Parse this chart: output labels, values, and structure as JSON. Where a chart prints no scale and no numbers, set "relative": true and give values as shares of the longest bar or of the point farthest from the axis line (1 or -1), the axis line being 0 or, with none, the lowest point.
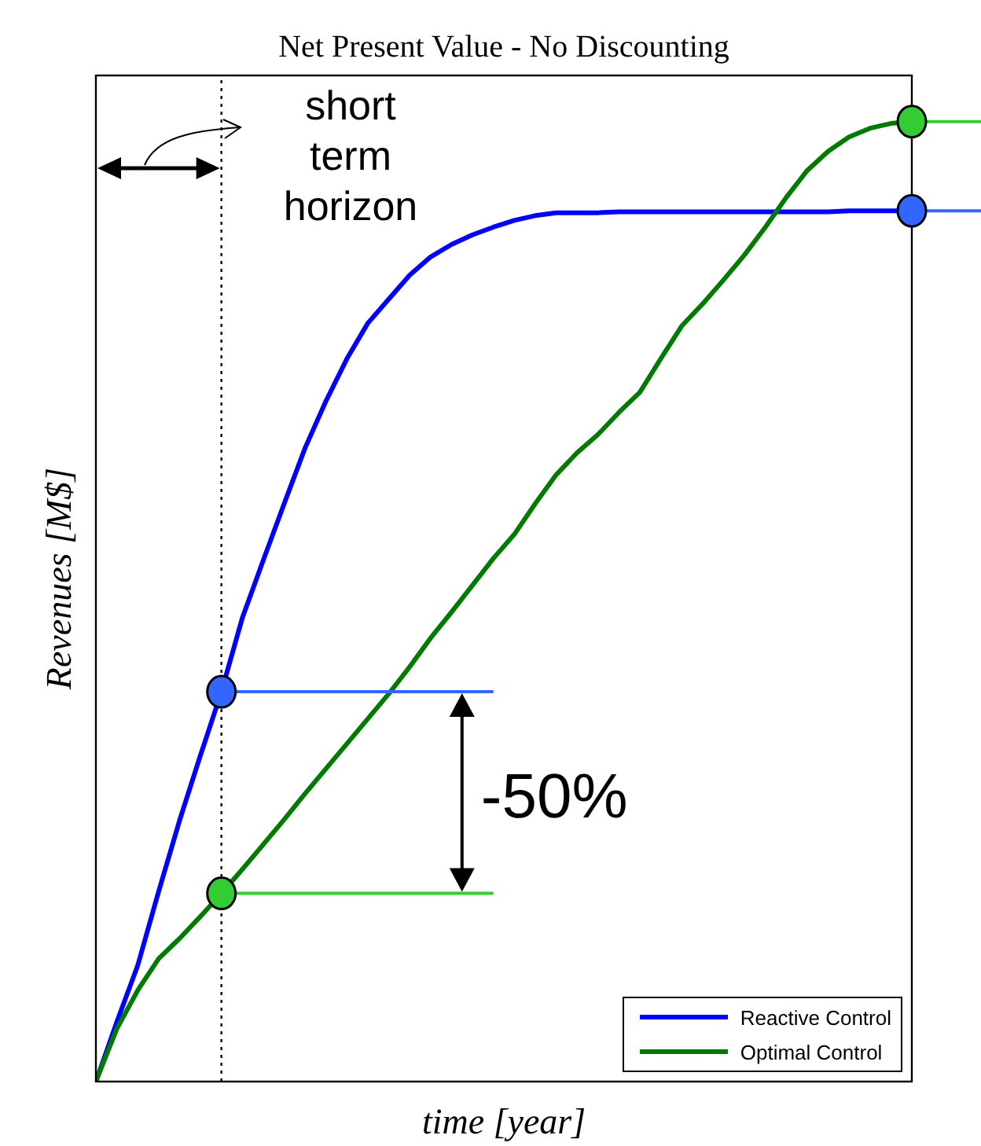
{
  "chart_data": {
    "type": "line",
    "title": "Net Present Value - No Discounting",
    "xlabel": "time [year]",
    "ylabel": "Revenues [M$]",
    "relative": true,
    "categories": [
      null,
      null,
      null,
      null,
      null,
      null,
      null,
      null,
      null,
      null,
      null,
      null,
      null,
      null,
      null,
      null,
      null,
      null,
      null,
      null,
      null,
      null,
      null,
      null,
      null,
      null,
      null,
      null,
      null,
      null,
      null,
      null,
      null,
      null,
      null,
      null,
      null,
      null,
      null,
      null
    ],
    "series": [
      {
        "name": "Reactive Control",
        "color": "#0000ff",
        "values": [
          0,
          0.062,
          0.121,
          0.198,
          0.272,
          0.34,
          0.406,
          0.483,
          0.543,
          0.602,
          0.66,
          0.709,
          0.753,
          0.79,
          0.815,
          0.84,
          0.859,
          0.872,
          0.882,
          0.89,
          0.897,
          0.902,
          0.905,
          0.905,
          0.905,
          0.906,
          0.906,
          0.906,
          0.906,
          0.906,
          0.906,
          0.906,
          0.906,
          0.906,
          0.906,
          0.906,
          0.907,
          0.907,
          0.907,
          0.907
        ]
      },
      {
        "name": "Optimal Control",
        "color": "#007a00",
        "values": [
          0,
          0.055,
          0.095,
          0.128,
          0.149,
          0.172,
          0.196,
          0.221,
          0.247,
          0.273,
          0.3,
          0.326,
          0.352,
          0.378,
          0.404,
          0.432,
          0.462,
          0.489,
          0.517,
          0.545,
          0.57,
          0.602,
          0.632,
          0.655,
          0.674,
          0.697,
          0.718,
          0.753,
          0.787,
          0.81,
          0.835,
          0.861,
          0.89,
          0.921,
          0.949,
          0.969,
          0.984,
          0.993,
          0.998,
          1
        ]
      }
    ],
    "annotations": [
      "short term horizon",
      "-50%"
    ],
    "legend": "bottom right"
  }
}
